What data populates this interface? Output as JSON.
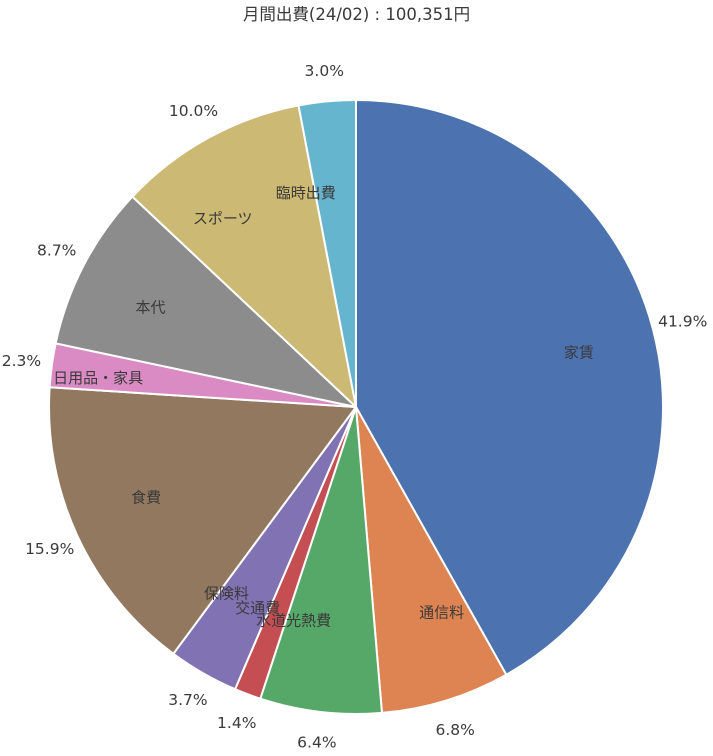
{
  "chart_data": {
    "type": "pie",
    "title": "月間出費(24/02) : 100,351円",
    "categories": [
      "家賃",
      "通信料",
      "水道光熱費",
      "交通費",
      "保険料",
      "食費",
      "日用品・家具",
      "本代",
      "スポーツ",
      "臨時出費"
    ],
    "values": [
      41.9,
      6.8,
      6.4,
      1.4,
      3.7,
      15.9,
      2.3,
      8.7,
      10.0,
      3.0
    ],
    "unit": "%",
    "slices": [
      {
        "label": "家賃",
        "value": 41.9,
        "pct_text": "41.9%",
        "color": "#4C72B0"
      },
      {
        "label": "通信料",
        "value": 6.8,
        "pct_text": "6.8%",
        "color": "#DD8452"
      },
      {
        "label": "水道光熱費",
        "value": 6.4,
        "pct_text": "6.4%",
        "color": "#55A868"
      },
      {
        "label": "交通費",
        "value": 1.4,
        "pct_text": "1.4%",
        "color": "#C44E52"
      },
      {
        "label": "保険料",
        "value": 3.7,
        "pct_text": "3.7%",
        "color": "#8172B3"
      },
      {
        "label": "食費",
        "value": 15.9,
        "pct_text": "15.9%",
        "color": "#937860"
      },
      {
        "label": "日用品・家具",
        "value": 2.3,
        "pct_text": "2.3%",
        "color": "#DA8BC3"
      },
      {
        "label": "本代",
        "value": 8.7,
        "pct_text": "8.7%",
        "color": "#8C8C8C"
      },
      {
        "label": "スポーツ",
        "value": 10.0,
        "pct_text": "10.0%",
        "color": "#CCB974"
      },
      {
        "label": "臨時出費",
        "value": 3.0,
        "pct_text": "3.0%",
        "color": "#64B5CD"
      }
    ],
    "layout": {
      "start_angle_deg": 90,
      "direction": "clockwise",
      "category_label_position": "inside",
      "percent_label_position": "outside",
      "label_distance": 0.7,
      "pct_distance": 1.1,
      "legend": "none",
      "grid": "off",
      "slice_border_color": "#ffffff",
      "text_color": "#3a3a3a",
      "background_color": "#ffffff"
    }
  }
}
